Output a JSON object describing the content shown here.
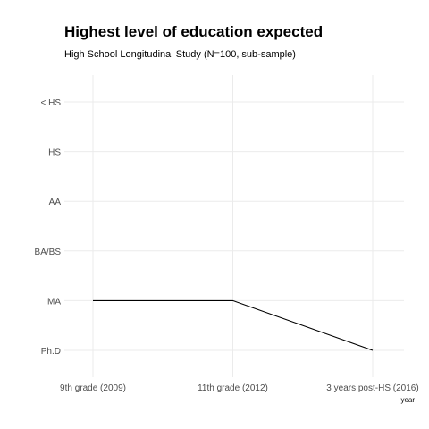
{
  "chart_data": {
    "type": "line",
    "title": "Highest level of education expected",
    "subtitle": "High School Longitudinal Study (N=100, sub-sample)",
    "xlabel": "year",
    "ylabel": "",
    "x_categories": [
      "9th grade (2009)",
      "11th grade (2012)",
      "3 years post-HS (2016)"
    ],
    "y_categories": [
      "< HS",
      "HS",
      "AA",
      "BA/BS",
      "MA",
      "Ph.D"
    ],
    "series": [
      {
        "values": [
          "MA",
          "MA",
          "Ph.D"
        ]
      }
    ],
    "grid": true,
    "colors": {
      "line": "#000000",
      "grid": "#ebebeb",
      "tick_text": "#4d4d4d"
    }
  }
}
